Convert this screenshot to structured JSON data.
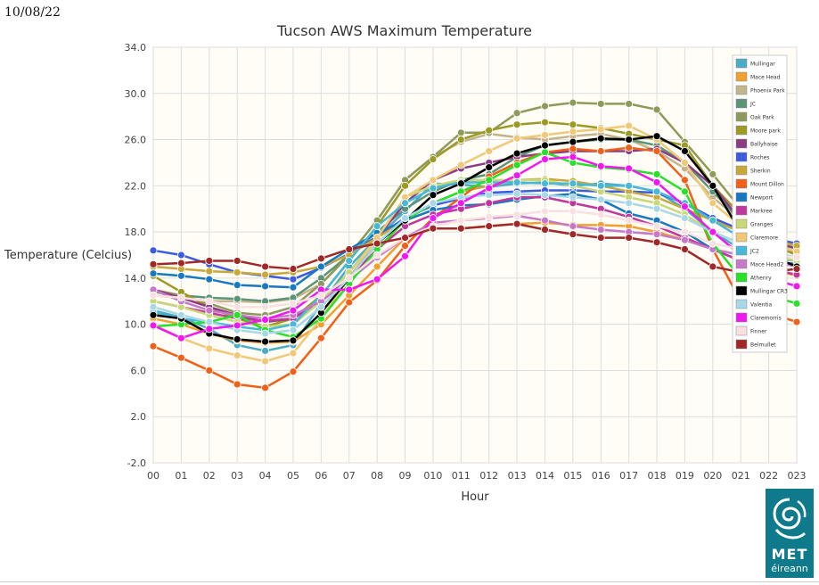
{
  "header": {
    "date": "10/08/22"
  },
  "logo": {
    "line1": "MET",
    "line2": "éireann",
    "color": "#0e7a8c"
  },
  "chart_data": {
    "type": "line",
    "title": "Tucson AWS Maximum Temperature",
    "xlabel": "Hour",
    "ylabel": "Temperature (Celcius)",
    "ylim": [
      -2.0,
      34.0
    ],
    "yticks": [
      "-2.0",
      "2.0",
      "6.0",
      "10.0",
      "14.0",
      "18.0",
      "22.0",
      "26.0",
      "30.0",
      "34.0"
    ],
    "grid": true,
    "legend_position": "top-right",
    "categories": [
      "00",
      "01",
      "02",
      "03",
      "04",
      "05",
      "06",
      "07",
      "08",
      "09",
      "010",
      "011",
      "012",
      "013",
      "014",
      "015",
      "016",
      "017",
      "018",
      "019",
      "020",
      "021",
      "022",
      "023"
    ],
    "series": [
      {
        "name": "Mullingar",
        "color": "#4bacc6",
        "values": [
          11.2,
          10.6,
          9.6,
          8.2,
          7.7,
          8.2,
          11.8,
          15.0,
          17.5,
          19.8,
          22.2,
          22.1,
          21.9,
          22.2,
          22.3,
          22.0,
          22.2,
          22.0,
          21.5,
          20.0,
          18.0,
          16.5,
          15.8,
          15.5
        ]
      },
      {
        "name": "Mace Head",
        "color": "#f0a030",
        "values": [
          10.5,
          10.0,
          9.2,
          8.6,
          8.4,
          8.5,
          10.0,
          12.5,
          15.0,
          17.5,
          18.3,
          18.3,
          18.5,
          18.7,
          18.8,
          18.6,
          18.6,
          18.5,
          18.0,
          17.3,
          16.5,
          15.5,
          14.8,
          14.2
        ]
      },
      {
        "name": "Phoenix Park",
        "color": "#c4b48c",
        "values": [
          12.5,
          12.3,
          12.0,
          12.0,
          11.9,
          12.2,
          13.5,
          16.0,
          19.0,
          22.5,
          24.5,
          25.8,
          26.5,
          26.2,
          26.0,
          26.3,
          26.5,
          26.0,
          25.0,
          23.5,
          21.0,
          19.0,
          17.5,
          16.5
        ]
      },
      {
        "name": "JC",
        "color": "#5c9478",
        "values": [
          12.8,
          12.5,
          12.3,
          12.2,
          12.0,
          12.3,
          14.0,
          16.0,
          18.0,
          20.0,
          21.5,
          22.5,
          23.0,
          24.5,
          25.5,
          25.8,
          26.0,
          26.0,
          25.5,
          24.0,
          21.5,
          19.0,
          17.5,
          16.5
        ]
      },
      {
        "name": "Oak Park",
        "color": "#8e9a5a",
        "values": [
          13.0,
          12.5,
          11.8,
          11.0,
          10.8,
          11.5,
          13.5,
          16.0,
          19.0,
          22.5,
          24.5,
          26.6,
          26.6,
          28.3,
          28.9,
          29.2,
          29.1,
          29.1,
          28.6,
          25.8,
          23.0,
          20.0,
          18.0,
          16.0
        ]
      },
      {
        "name": "Moore park",
        "color": "#9c9a24",
        "values": [
          14.2,
          12.8,
          11.5,
          10.5,
          9.8,
          10.5,
          12.5,
          15.5,
          18.5,
          22.0,
          24.3,
          26.0,
          26.8,
          27.3,
          27.5,
          27.3,
          27.0,
          26.5,
          26.0,
          25.5,
          22.0,
          19.5,
          17.0,
          16.0
        ]
      },
      {
        "name": "Ballyhaise",
        "color": "#8c3c84",
        "values": [
          13.0,
          12.3,
          11.5,
          10.8,
          10.2,
          10.5,
          12.0,
          14.5,
          17.5,
          20.5,
          22.5,
          23.5,
          24.0,
          24.5,
          24.8,
          25.0,
          25.0,
          25.0,
          25.2,
          24.0,
          22.0,
          19.0,
          17.5,
          16.5
        ]
      },
      {
        "name": "Roches",
        "color": "#3c5ce0",
        "values": [
          16.4,
          16.0,
          15.2,
          14.5,
          14.2,
          13.9,
          14.9,
          16.1,
          17.6,
          19.2,
          20.3,
          20.9,
          21.4,
          21.5,
          21.6,
          21.6,
          21.5,
          21.5,
          21.4,
          20.5,
          19.2,
          18.2,
          17.5,
          17.0
        ]
      },
      {
        "name": "Sherkin",
        "color": "#c8a838",
        "values": [
          15.0,
          14.8,
          14.6,
          14.5,
          14.3,
          14.5,
          15.0,
          16.0,
          17.5,
          19.0,
          20.5,
          21.5,
          22.0,
          22.5,
          22.6,
          22.4,
          22.0,
          21.5,
          21.0,
          20.0,
          19.0,
          18.0,
          17.3,
          16.8
        ]
      },
      {
        "name": "Mount Dillon",
        "color": "#f06018",
        "values": [
          8.1,
          7.1,
          6.0,
          4.8,
          4.5,
          5.9,
          8.8,
          11.9,
          13.8,
          16.8,
          19.2,
          21.0,
          22.8,
          24.0,
          24.9,
          25.2,
          25.0,
          25.3,
          25.0,
          22.5,
          16.5,
          12.0,
          11.0,
          10.2
        ]
      },
      {
        "name": "Newport",
        "color": "#1878c0",
        "values": [
          14.4,
          14.2,
          13.9,
          13.4,
          13.3,
          13.2,
          15.0,
          16.5,
          17.9,
          19.0,
          19.9,
          20.3,
          20.4,
          20.8,
          21.1,
          21.3,
          20.8,
          19.6,
          19.0,
          18.0,
          16.5,
          15.5,
          15.2,
          15.3
        ]
      },
      {
        "name": "Markree",
        "color": "#c0389c",
        "values": [
          12.0,
          11.5,
          11.0,
          10.5,
          10.3,
          10.5,
          12.0,
          14.0,
          16.5,
          18.5,
          19.5,
          20.0,
          20.5,
          21.0,
          21.0,
          20.5,
          20.0,
          19.3,
          18.5,
          17.5,
          16.5,
          15.5,
          14.8,
          14.3
        ]
      },
      {
        "name": "Granges",
        "color": "#c8d878",
        "values": [
          12.0,
          11.5,
          10.8,
          10.2,
          9.8,
          10.0,
          12.0,
          14.5,
          17.5,
          21.0,
          22.0,
          22.5,
          22.5,
          22.5,
          22.5,
          22.0,
          21.5,
          21.0,
          20.5,
          19.5,
          18.0,
          17.0,
          16.0,
          15.5
        ]
      },
      {
        "name": "Claremore",
        "color": "#f0c878",
        "values": [
          10.0,
          8.8,
          7.9,
          7.3,
          6.8,
          7.5,
          10.5,
          14.0,
          17.5,
          21.0,
          22.5,
          23.8,
          25.0,
          26.1,
          26.4,
          26.7,
          26.9,
          27.2,
          26.0,
          24.0,
          20.5,
          18.5,
          17.0,
          16.3
        ]
      },
      {
        "name": "JC2",
        "color": "#48b8d8",
        "values": [
          11.0,
          10.5,
          10.2,
          9.8,
          9.5,
          10.0,
          12.5,
          15.5,
          18.5,
          20.5,
          21.8,
          22.3,
          22.3,
          22.3,
          22.2,
          22.2,
          22.0,
          22.0,
          21.5,
          20.5,
          19.0,
          17.5,
          16.2,
          15.8
        ]
      },
      {
        "name": "Mace Head2",
        "color": "#c878c8",
        "values": [
          13.0,
          12.0,
          11.2,
          10.8,
          10.5,
          10.8,
          12.0,
          13.8,
          15.8,
          17.5,
          18.8,
          19.0,
          19.2,
          19.4,
          19.0,
          18.5,
          18.2,
          18.0,
          17.8,
          17.3,
          16.5,
          16.0,
          15.5,
          15.0
        ]
      },
      {
        "name": "Athenry",
        "color": "#28e028",
        "values": [
          9.8,
          10.0,
          10.2,
          10.8,
          9.5,
          8.9,
          10.5,
          13.5,
          16.5,
          19.0,
          20.5,
          21.5,
          22.5,
          23.8,
          24.9,
          24.0,
          23.6,
          23.4,
          23.0,
          21.5,
          17.0,
          14.0,
          12.5,
          11.8
        ]
      },
      {
        "name": "Mullingar CR3",
        "color": "#000000",
        "values": [
          10.8,
          10.5,
          9.2,
          8.7,
          8.5,
          8.6,
          11.0,
          14.0,
          17.0,
          19.0,
          21.2,
          22.2,
          23.6,
          24.8,
          25.5,
          25.8,
          26.1,
          26.0,
          26.3,
          25.0,
          22.0,
          18.0,
          16.0,
          15.0
        ]
      },
      {
        "name": "Valentia",
        "color": "#a8d8e8",
        "values": [
          11.5,
          10.8,
          10.2,
          9.5,
          9.2,
          9.5,
          11.5,
          14.0,
          17.0,
          19.2,
          20.5,
          21.0,
          21.2,
          21.3,
          21.2,
          21.0,
          20.8,
          20.5,
          20.0,
          19.2,
          18.0,
          17.0,
          16.3,
          15.8
        ]
      },
      {
        "name": "Claremorris",
        "color": "#f018f0",
        "values": [
          9.9,
          8.8,
          9.6,
          9.9,
          10.4,
          11.2,
          13.0,
          13.0,
          13.9,
          15.9,
          19.2,
          20.5,
          21.8,
          22.9,
          24.3,
          24.5,
          23.7,
          23.5,
          22.3,
          20.2,
          18.0,
          16.0,
          14.0,
          13.3
        ]
      },
      {
        "name": "Finner",
        "color": "#f8e0e0",
        "values": [
          12.5,
          12.3,
          12.0,
          11.5,
          11.5,
          11.8,
          12.5,
          14.0,
          16.0,
          17.5,
          18.5,
          19.0,
          19.3,
          19.5,
          19.8,
          19.8,
          19.5,
          19.0,
          18.5,
          18.0,
          17.0,
          16.5,
          16.0,
          15.8
        ]
      },
      {
        "name": "Belmullet",
        "color": "#a02828",
        "values": [
          15.2,
          15.3,
          15.5,
          15.5,
          15.0,
          14.8,
          15.7,
          16.5,
          17.0,
          17.5,
          18.3,
          18.3,
          18.5,
          18.7,
          18.2,
          17.8,
          17.5,
          17.5,
          17.1,
          16.5,
          15.0,
          14.5,
          14.5,
          14.8
        ]
      }
    ]
  }
}
